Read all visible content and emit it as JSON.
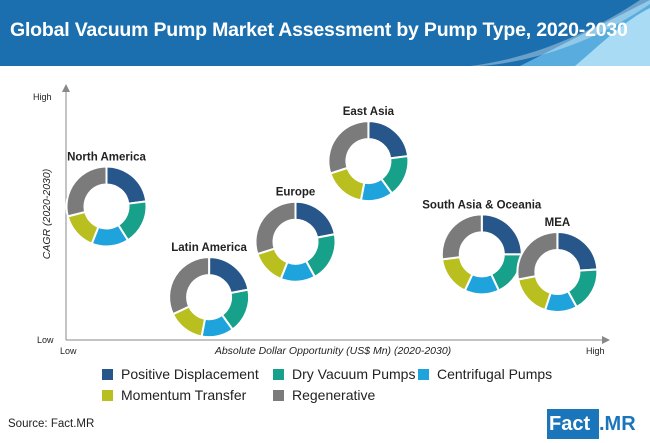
{
  "title": "Global Vacuum Pump Market Assessment by Pump Type, 2020-2030",
  "source": "Source: Fact.MR",
  "logo": {
    "left": "Fact",
    "right": ".MR"
  },
  "colors": {
    "header": "#1b6fae",
    "header_light": "#7fc6ea",
    "Positive Displacement": "#27578a",
    "Dry Vacuum Pumps": "#17a08a",
    "Centrifugal Pumps": "#1ea3dc",
    "Momentum Transfer": "#b9bf1e",
    "Regenerative": "#7b7b7b"
  },
  "chart_data": {
    "type": "scatter",
    "subtype": "bubble-of-donuts",
    "title": "Global Vacuum Pump Market Assessment by Pump Type, 2020-2030",
    "xlabel": "Absolute Dollar Opportunity (US$ Mn) (2020-2030)",
    "ylabel": "CAGR (2020-2030)",
    "x_ticks": [
      "Low",
      "High"
    ],
    "y_ticks": [
      "High",
      "Low"
    ],
    "xlim": [
      0,
      100
    ],
    "ylim": [
      0,
      100
    ],
    "segments": [
      "Positive Displacement",
      "Dry Vacuum Pumps",
      "Centrifugal Pumps",
      "Momentum Transfer",
      "Regenerative"
    ],
    "points": [
      {
        "name": "North America",
        "x": 7.5,
        "y": 53,
        "shares": [
          23,
          18,
          15,
          15,
          29
        ]
      },
      {
        "name": "Latin America",
        "x": 26.5,
        "y": 17,
        "shares": [
          22,
          18,
          13,
          15,
          32
        ]
      },
      {
        "name": "Europe",
        "x": 42.5,
        "y": 39,
        "shares": [
          22,
          20,
          14,
          14,
          30
        ]
      },
      {
        "name": "East Asia",
        "x": 56,
        "y": 71,
        "shares": [
          23,
          17,
          13,
          17,
          30
        ]
      },
      {
        "name": "South Asia & Oceania",
        "x": 77,
        "y": 34,
        "shares": [
          25,
          18,
          14,
          16,
          27
        ]
      },
      {
        "name": "MEA",
        "x": 91,
        "y": 27,
        "shares": [
          24,
          18,
          13,
          17,
          28
        ]
      }
    ],
    "legend_position": "bottom",
    "grid": false
  }
}
